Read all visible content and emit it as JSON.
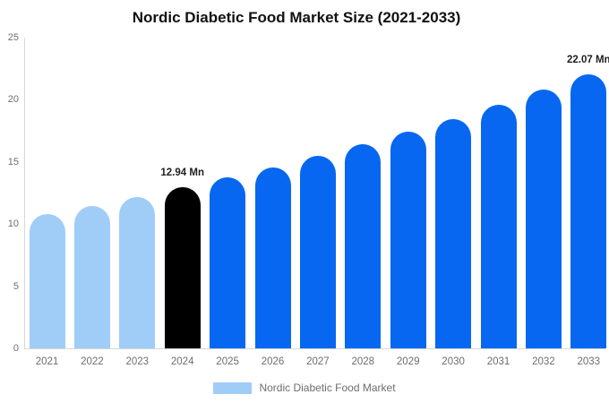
{
  "title": "Nordic Diabetic Food Market Size (2021-2033)",
  "colors": {
    "historical": "#a0cdf8",
    "current": "#000000",
    "forecast": "#0767f0",
    "axis_line": "#d8d8d8",
    "axis_text": "#6e6e6e",
    "value_label": "#1f1f1f",
    "title_text": "#111111"
  },
  "chart_data": {
    "type": "bar",
    "title": "Nordic Diabetic Food Market Size (2021-2033)",
    "xlabel": "",
    "ylabel": "",
    "unit": "Mn",
    "categories": [
      "2021",
      "2022",
      "2023",
      "2024",
      "2025",
      "2026",
      "2027",
      "2028",
      "2029",
      "2030",
      "2031",
      "2032",
      "2033"
    ],
    "values": [
      10.83,
      11.49,
      12.2,
      12.94,
      13.73,
      14.57,
      15.46,
      16.41,
      17.41,
      18.47,
      19.6,
      20.8,
      22.07
    ],
    "bar_color_roles": [
      "historical",
      "historical",
      "historical",
      "current",
      "forecast",
      "forecast",
      "forecast",
      "forecast",
      "forecast",
      "forecast",
      "forecast",
      "forecast",
      "forecast"
    ],
    "value_labels": [
      null,
      null,
      null,
      "12.94 Mn",
      null,
      null,
      null,
      null,
      null,
      null,
      null,
      null,
      "22.07 Mn"
    ],
    "ylim": [
      0,
      25
    ],
    "yticks": [
      0,
      5,
      10,
      15,
      20,
      25
    ],
    "grid": false,
    "legend": {
      "position": "bottom",
      "items": [
        {
          "label": "Nordic Diabetic Food Market",
          "color_role": "historical"
        }
      ]
    }
  }
}
